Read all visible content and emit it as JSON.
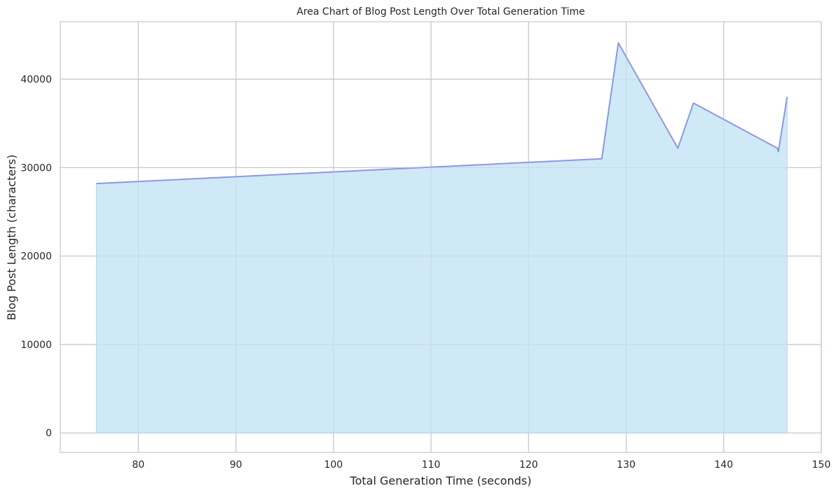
{
  "chart_data": {
    "type": "area",
    "title": "Area Chart of Blog Post Length Over Total Generation Time",
    "xlabel": "Total Generation Time (seconds)",
    "ylabel": "Blog Post Length (characters)",
    "xlim": [
      72,
      150
    ],
    "ylim": [
      -2200,
      46500
    ],
    "xticks": [
      80,
      90,
      100,
      110,
      120,
      130,
      140,
      150
    ],
    "yticks": [
      0,
      10000,
      20000,
      30000,
      40000
    ],
    "grid": true,
    "legend": "none",
    "series": [
      {
        "x": [
          75.7,
          127.5,
          129.2,
          135.3,
          136.9,
          145.5,
          145.6,
          146.5
        ],
        "y": [
          28200,
          31000,
          44100,
          32200,
          37300,
          32200,
          31800,
          38000
        ],
        "line_color": "#8f96e3",
        "fill_color": "#cfe9f6"
      }
    ]
  }
}
